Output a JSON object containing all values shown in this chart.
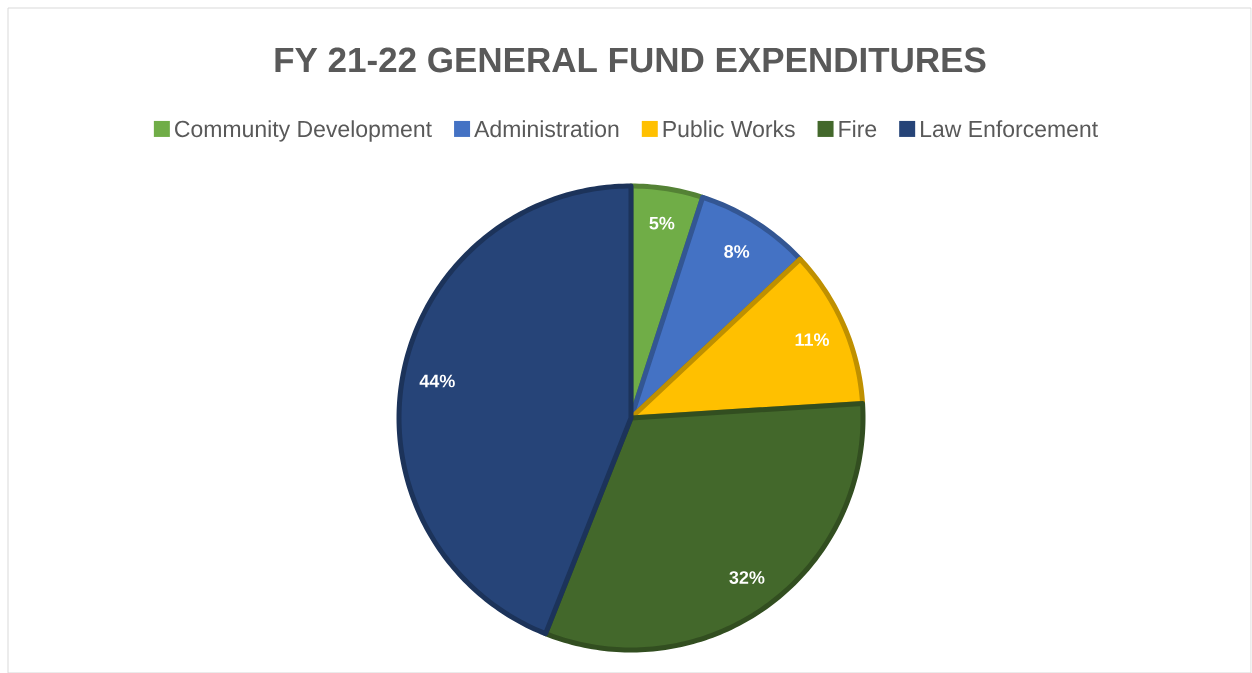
{
  "chart_data": {
    "type": "pie",
    "title": "FY 21-22 GENERAL FUND EXPENDITURES",
    "categories": [
      "Community Development",
      "Administration",
      "Public Works",
      "Fire",
      "Law Enforcement"
    ],
    "values": [
      5,
      8,
      11,
      32,
      44
    ],
    "colors": [
      "#70ad47",
      "#4472c4",
      "#ffc000",
      "#43682b",
      "#264478"
    ],
    "value_labels": [
      "5%",
      "8%",
      "11%",
      "32%",
      "44%"
    ],
    "legend": "top"
  }
}
